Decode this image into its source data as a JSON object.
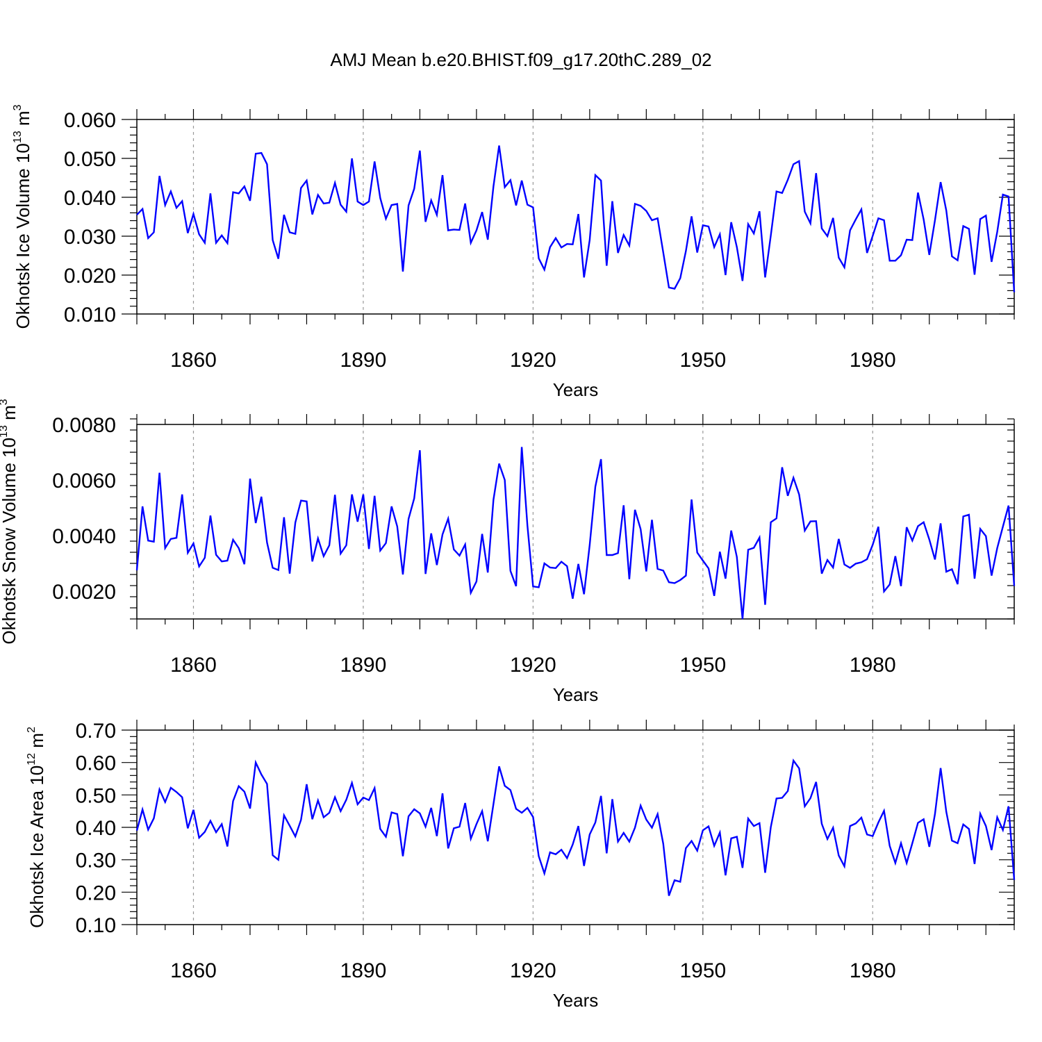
{
  "chart_data": [
    {
      "type": "line",
      "title": "AMJ Mean b.e20.BHIST.f09_g17.20thC.289_02",
      "xlabel": "Years",
      "ylabel": "Okhotsk Ice Volume 10",
      "ylabel_exp": "13",
      "ylabel_unit": " m",
      "ylabel_unit_exp": "3",
      "xlim": [
        1850,
        2005
      ],
      "ylim": [
        0.01,
        0.06
      ],
      "yticks": [
        "0.010",
        "0.020",
        "0.030",
        "0.040",
        "0.050",
        "0.060"
      ],
      "xticks": [
        "1860",
        "1890",
        "1920",
        "1950",
        "1980"
      ],
      "x_start": 1850,
      "values": [
        0.0355,
        0.037,
        0.0295,
        0.031,
        0.0455,
        0.038,
        0.0415,
        0.0373,
        0.039,
        0.0308,
        0.0357,
        0.0305,
        0.0283,
        0.041,
        0.0283,
        0.0302,
        0.0282,
        0.0413,
        0.041,
        0.0428,
        0.0391,
        0.0512,
        0.0514,
        0.0485,
        0.029,
        0.0242,
        0.0355,
        0.031,
        0.0306,
        0.0424,
        0.0443,
        0.0356,
        0.0406,
        0.0384,
        0.0386,
        0.0437,
        0.0381,
        0.0363,
        0.05,
        0.0389,
        0.038,
        0.0389,
        0.0492,
        0.0398,
        0.0345,
        0.038,
        0.0383,
        0.0209,
        0.0379,
        0.0422,
        0.052,
        0.0337,
        0.0392,
        0.0355,
        0.0457,
        0.0315,
        0.0317,
        0.0316,
        0.0384,
        0.0283,
        0.0315,
        0.0362,
        0.0291,
        0.0428,
        0.0533,
        0.0426,
        0.0444,
        0.0379,
        0.0443,
        0.0381,
        0.0374,
        0.0243,
        0.0214,
        0.0272,
        0.0295,
        0.0271,
        0.028,
        0.0279,
        0.0357,
        0.0194,
        0.029,
        0.0457,
        0.0443,
        0.0224,
        0.039,
        0.0257,
        0.0303,
        0.0276,
        0.0383,
        0.0378,
        0.0365,
        0.0341,
        0.0346,
        0.0258,
        0.0168,
        0.0165,
        0.0192,
        0.0262,
        0.0351,
        0.0258,
        0.0328,
        0.0325,
        0.0272,
        0.0305,
        0.02,
        0.0336,
        0.0272,
        0.0185,
        0.0331,
        0.0307,
        0.0364,
        0.0194,
        0.0302,
        0.0415,
        0.0411,
        0.0445,
        0.0485,
        0.0493,
        0.0363,
        0.0333,
        0.0462,
        0.032,
        0.03,
        0.0347,
        0.0245,
        0.022,
        0.0315,
        0.0343,
        0.0369,
        0.0257,
        0.0301,
        0.0346,
        0.0341,
        0.0237,
        0.0237,
        0.0251,
        0.0291,
        0.029,
        0.0412,
        0.0343,
        0.0252,
        0.0341,
        0.0439,
        0.0366,
        0.0248,
        0.0238,
        0.0326,
        0.0319,
        0.0201,
        0.0344,
        0.0353,
        0.0234,
        0.0311,
        0.0407,
        0.0402,
        0.0156
      ]
    },
    {
      "type": "line",
      "title": "",
      "xlabel": "Years",
      "ylabel": "Okhotsk Snow Volume 10",
      "ylabel_exp": "13",
      "ylabel_unit": " m",
      "ylabel_unit_exp": "3",
      "xlim": [
        1850,
        2005
      ],
      "ylim": [
        0.001,
        0.008
      ],
      "yticks": [
        "0.0020",
        "0.0040",
        "0.0060",
        "0.0080"
      ],
      "ytick_values": [
        0.002,
        0.004,
        0.006,
        0.008
      ],
      "xticks": [
        "1860",
        "1890",
        "1920",
        "1950",
        "1980"
      ],
      "x_start": 1850,
      "values": [
        0.00275,
        0.00505,
        0.00382,
        0.00378,
        0.00626,
        0.00355,
        0.00388,
        0.00392,
        0.00548,
        0.00338,
        0.00372,
        0.00289,
        0.0032,
        0.00472,
        0.00331,
        0.00307,
        0.0031,
        0.00385,
        0.00355,
        0.00297,
        0.00605,
        0.00445,
        0.0054,
        0.00375,
        0.00284,
        0.00276,
        0.00466,
        0.00263,
        0.00447,
        0.00526,
        0.00523,
        0.00307,
        0.0039,
        0.00326,
        0.00365,
        0.00547,
        0.00335,
        0.00365,
        0.00548,
        0.0045,
        0.00548,
        0.00352,
        0.00543,
        0.00346,
        0.00373,
        0.00505,
        0.00433,
        0.0026,
        0.0046,
        0.00534,
        0.00707,
        0.00262,
        0.00408,
        0.00294,
        0.00404,
        0.00461,
        0.0035,
        0.00328,
        0.00368,
        0.00194,
        0.00235,
        0.00406,
        0.00267,
        0.00529,
        0.00659,
        0.006,
        0.00273,
        0.00218,
        0.00719,
        0.00436,
        0.00217,
        0.00214,
        0.003,
        0.00285,
        0.00283,
        0.00306,
        0.0029,
        0.00173,
        0.00298,
        0.00189,
        0.00366,
        0.00576,
        0.00675,
        0.0033,
        0.0033,
        0.00337,
        0.00509,
        0.00243,
        0.00493,
        0.00423,
        0.00271,
        0.00457,
        0.0028,
        0.00274,
        0.00232,
        0.00229,
        0.0024,
        0.00256,
        0.0053,
        0.00339,
        0.0031,
        0.00282,
        0.00183,
        0.00342,
        0.00245,
        0.00418,
        0.00323,
        0.001,
        0.00349,
        0.00356,
        0.00393,
        0.00151,
        0.00448,
        0.00462,
        0.00646,
        0.00543,
        0.00608,
        0.00548,
        0.00418,
        0.00451,
        0.00452,
        0.00263,
        0.00312,
        0.00285,
        0.00388,
        0.00296,
        0.00284,
        0.00299,
        0.00304,
        0.00315,
        0.00367,
        0.00432,
        0.00199,
        0.00224,
        0.00326,
        0.00218,
        0.0043,
        0.00382,
        0.00434,
        0.00448,
        0.00386,
        0.00314,
        0.00444,
        0.0027,
        0.00279,
        0.00225,
        0.00469,
        0.00475,
        0.00245,
        0.00424,
        0.00398,
        0.00256,
        0.00355,
        0.00432,
        0.00508,
        0.00219
      ]
    },
    {
      "type": "line",
      "title": "",
      "xlabel": "Years",
      "ylabel": "Okhotsk Ice Area 10",
      "ylabel_exp": "12",
      "ylabel_unit": " m",
      "ylabel_unit_exp": "2",
      "xlim": [
        1850,
        2005
      ],
      "ylim": [
        0.1,
        0.7
      ],
      "yticks": [
        "0.10",
        "0.20",
        "0.30",
        "0.40",
        "0.50",
        "0.60",
        "0.70"
      ],
      "xticks": [
        "1860",
        "1890",
        "1920",
        "1950",
        "1980"
      ],
      "x_start": 1850,
      "values": [
        0.39,
        0.455,
        0.393,
        0.428,
        0.517,
        0.478,
        0.522,
        0.509,
        0.493,
        0.397,
        0.454,
        0.368,
        0.386,
        0.42,
        0.385,
        0.41,
        0.341,
        0.481,
        0.527,
        0.51,
        0.458,
        0.6,
        0.563,
        0.534,
        0.314,
        0.3,
        0.437,
        0.405,
        0.372,
        0.423,
        0.533,
        0.425,
        0.483,
        0.431,
        0.445,
        0.493,
        0.45,
        0.485,
        0.537,
        0.471,
        0.492,
        0.484,
        0.521,
        0.395,
        0.371,
        0.446,
        0.441,
        0.311,
        0.434,
        0.456,
        0.443,
        0.402,
        0.46,
        0.373,
        0.505,
        0.335,
        0.397,
        0.402,
        0.475,
        0.365,
        0.41,
        0.45,
        0.357,
        0.472,
        0.588,
        0.528,
        0.515,
        0.457,
        0.445,
        0.46,
        0.432,
        0.311,
        0.258,
        0.323,
        0.317,
        0.331,
        0.305,
        0.347,
        0.404,
        0.281,
        0.378,
        0.415,
        0.497,
        0.32,
        0.487,
        0.356,
        0.383,
        0.356,
        0.399,
        0.467,
        0.424,
        0.399,
        0.441,
        0.349,
        0.189,
        0.237,
        0.232,
        0.336,
        0.358,
        0.328,
        0.391,
        0.403,
        0.343,
        0.384,
        0.252,
        0.366,
        0.371,
        0.275,
        0.427,
        0.404,
        0.413,
        0.26,
        0.401,
        0.489,
        0.491,
        0.512,
        0.606,
        0.582,
        0.465,
        0.49,
        0.54,
        0.411,
        0.364,
        0.399,
        0.313,
        0.28,
        0.404,
        0.412,
        0.43,
        0.378,
        0.373,
        0.415,
        0.451,
        0.343,
        0.29,
        0.351,
        0.29,
        0.351,
        0.414,
        0.425,
        0.34,
        0.441,
        0.583,
        0.448,
        0.359,
        0.351,
        0.409,
        0.395,
        0.287,
        0.442,
        0.404,
        0.33,
        0.431,
        0.392,
        0.465,
        0.238
      ]
    }
  ]
}
